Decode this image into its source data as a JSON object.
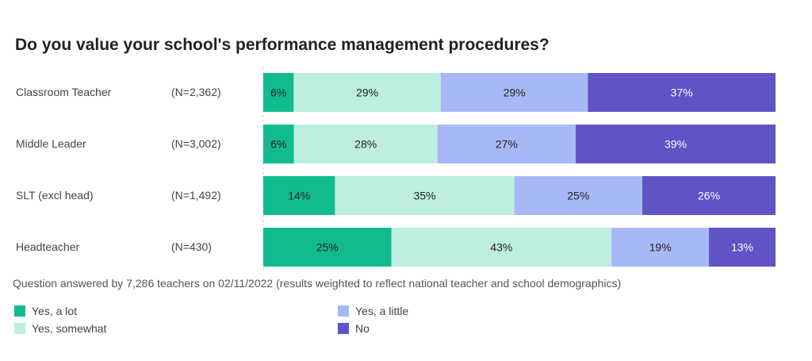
{
  "chart_data": {
    "type": "bar",
    "orientation": "horizontal",
    "stacked": true,
    "title": "Do you value your school's performance management procedures?",
    "categories": [
      "Classroom Teacher",
      "Middle Leader",
      "SLT (excl head)",
      "Headteacher"
    ],
    "sample_sizes": [
      "(N=2,362)",
      "(N=3,002)",
      "(N=1,492)",
      "(N=430)"
    ],
    "series": [
      {
        "name": "Yes, a lot",
        "color": "#12bb8f",
        "values": [
          6,
          6,
          14,
          25
        ],
        "labels": [
          "6%",
          "6%",
          "14%",
          "25%"
        ],
        "label_color": "#222222"
      },
      {
        "name": "Yes, somewhat",
        "color": "#bdeedf",
        "values": [
          29,
          28,
          35,
          43
        ],
        "labels": [
          "29%",
          "28%",
          "35%",
          "43%"
        ],
        "label_color": "#222222"
      },
      {
        "name": "Yes, a little",
        "color": "#a7b8f7",
        "values": [
          29,
          27,
          25,
          19
        ],
        "labels": [
          "29%",
          "27%",
          "25%",
          "19%"
        ],
        "label_color": "#222222"
      },
      {
        "name": "No",
        "color": "#5f53c6",
        "values": [
          37,
          39,
          26,
          13
        ],
        "labels": [
          "37%",
          "39%",
          "26%",
          "13%"
        ],
        "label_color": "#ffffff"
      }
    ],
    "note": "Question answered by 7,286 teachers on 02/11/2022 (results weighted to reflect national teacher and school demographics)",
    "legend_position": "bottom",
    "grid": false
  }
}
